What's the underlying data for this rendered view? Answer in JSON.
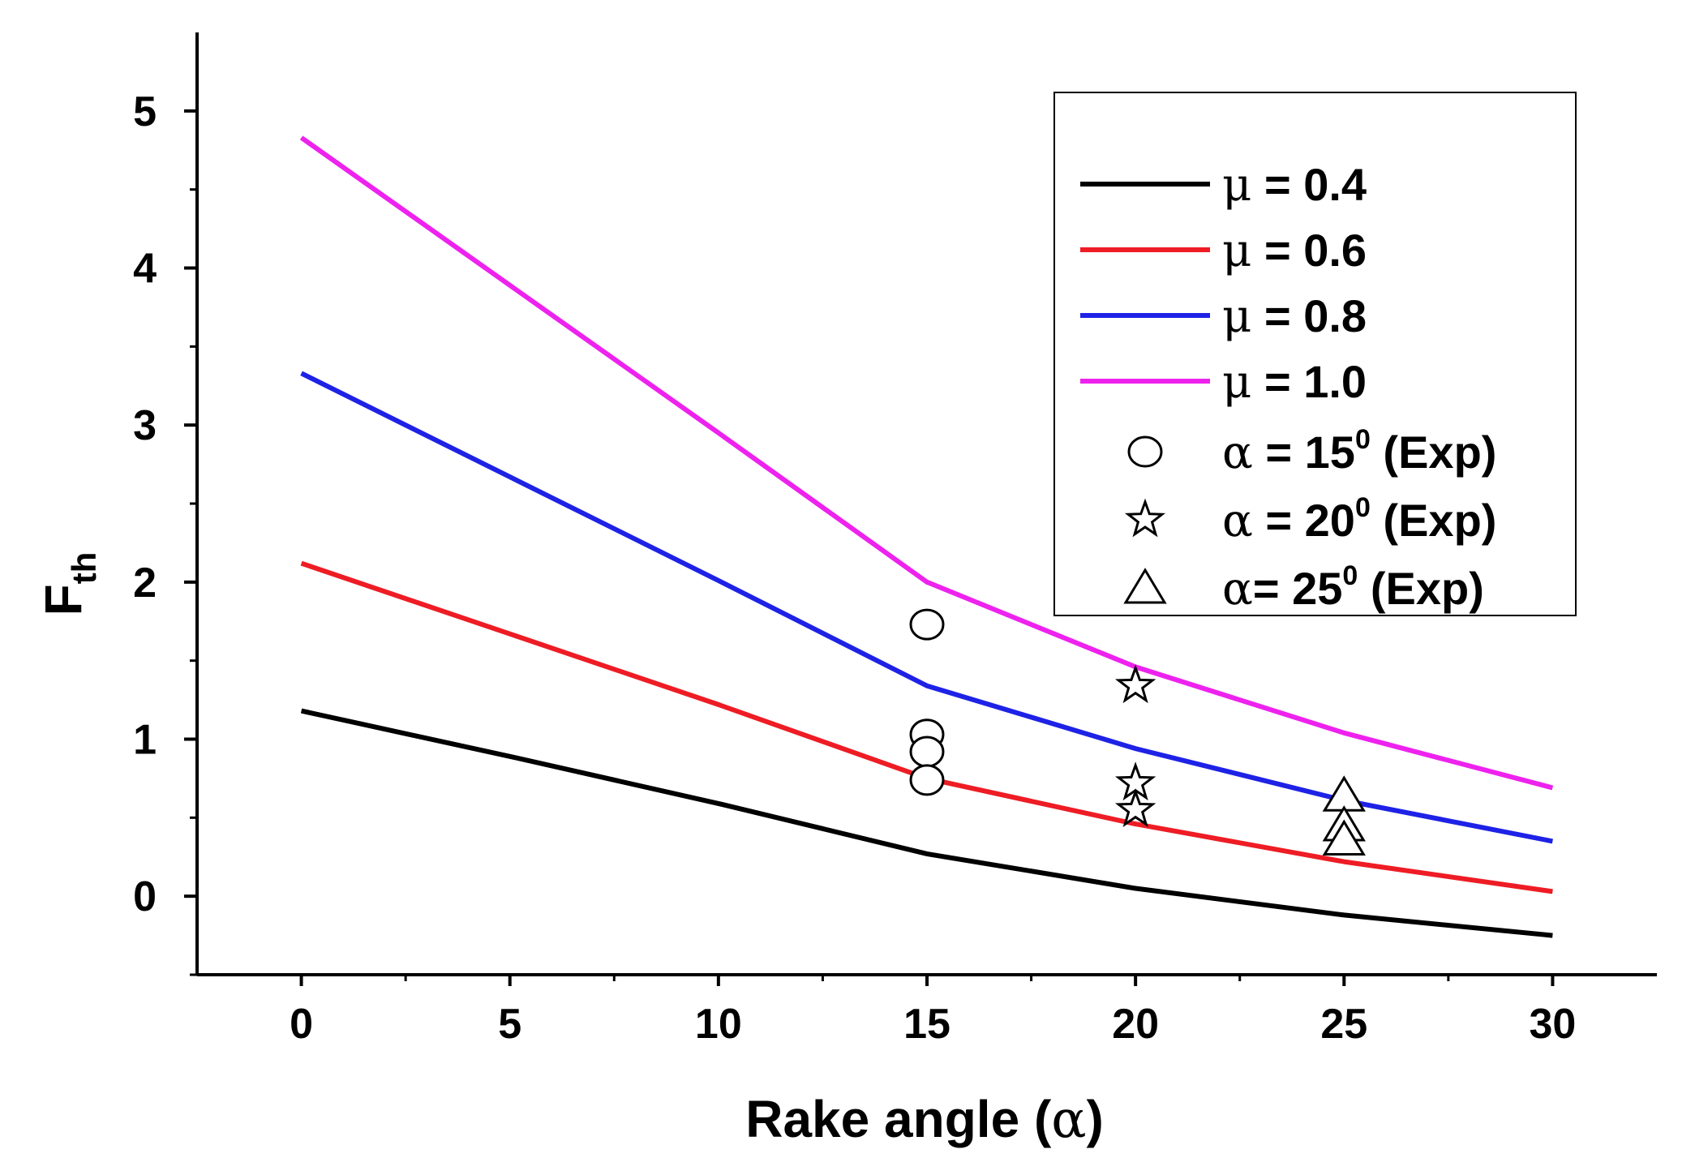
{
  "chart_data": {
    "type": "line",
    "title": "",
    "xlabel": {
      "main": "Rake angle (",
      "symbol": "α",
      "close": ")"
    },
    "ylabel": {
      "main": "F",
      "sub": "th"
    },
    "xlim": [
      -2.5,
      32.5
    ],
    "ylim": [
      -0.5,
      5.5
    ],
    "x_ticks": [
      0,
      5,
      10,
      15,
      20,
      25,
      30
    ],
    "x_minor_ticks": [
      2.5,
      7.5,
      12.5,
      17.5,
      22.5,
      27.5
    ],
    "y_ticks": [
      0,
      1,
      2,
      3,
      4,
      5
    ],
    "y_minor_ticks": [
      -0.5,
      0.5,
      1.5,
      2.5,
      3.5,
      4.5
    ],
    "grid": false,
    "legend_position": "top-right",
    "series": [
      {
        "name": "μ = 0.4",
        "symbol": "μ",
        "label": " = 0.4",
        "color": "#000000",
        "x": [
          0,
          5,
          10,
          15,
          20,
          25,
          30
        ],
        "y": [
          1.18,
          0.89,
          0.59,
          0.27,
          0.05,
          -0.12,
          -0.25
        ]
      },
      {
        "name": "μ = 0.6",
        "symbol": "μ",
        "label": " = 0.6",
        "color": "#ee1c24",
        "x": [
          0,
          5,
          10,
          15,
          20,
          25,
          30
        ],
        "y": [
          2.12,
          1.67,
          1.22,
          0.75,
          0.46,
          0.22,
          0.03
        ]
      },
      {
        "name": "μ = 0.8",
        "symbol": "μ",
        "label": " = 0.8",
        "color": "#1e22e6",
        "x": [
          0,
          5,
          10,
          15,
          20,
          25,
          30
        ],
        "y": [
          3.33,
          2.67,
          2.01,
          1.34,
          0.94,
          0.61,
          0.35
        ]
      },
      {
        "name": "μ = 1.0",
        "symbol": "μ",
        "label": " = 1.0",
        "color": "#ee22ee",
        "x": [
          0,
          5,
          10,
          15,
          20,
          25,
          30
        ],
        "y": [
          4.83,
          3.89,
          2.95,
          2.0,
          1.46,
          1.04,
          0.69
        ]
      }
    ],
    "experimental": [
      {
        "name": "α = 15⁰ (Exp)",
        "symbol": "α",
        "label_pre": " = 15",
        "sup": "0",
        "label_post": " (Exp)",
        "marker": "circle",
        "x": [
          15,
          15,
          15,
          15
        ],
        "y": [
          1.73,
          1.03,
          0.92,
          0.74
        ]
      },
      {
        "name": "α = 20⁰ (Exp)",
        "symbol": "α",
        "label_pre": " = 20",
        "sup": "0",
        "label_post": " (Exp)",
        "marker": "star",
        "x": [
          20,
          20,
          20
        ],
        "y": [
          1.34,
          0.72,
          0.55
        ]
      },
      {
        "name": "α= 25⁰ (Exp)",
        "symbol": "α",
        "label_pre": "= 25",
        "sup": "0",
        "label_post": " (Exp)",
        "marker": "triangle",
        "x": [
          25,
          25,
          25
        ],
        "y": [
          0.64,
          0.45,
          0.36
        ]
      }
    ]
  }
}
